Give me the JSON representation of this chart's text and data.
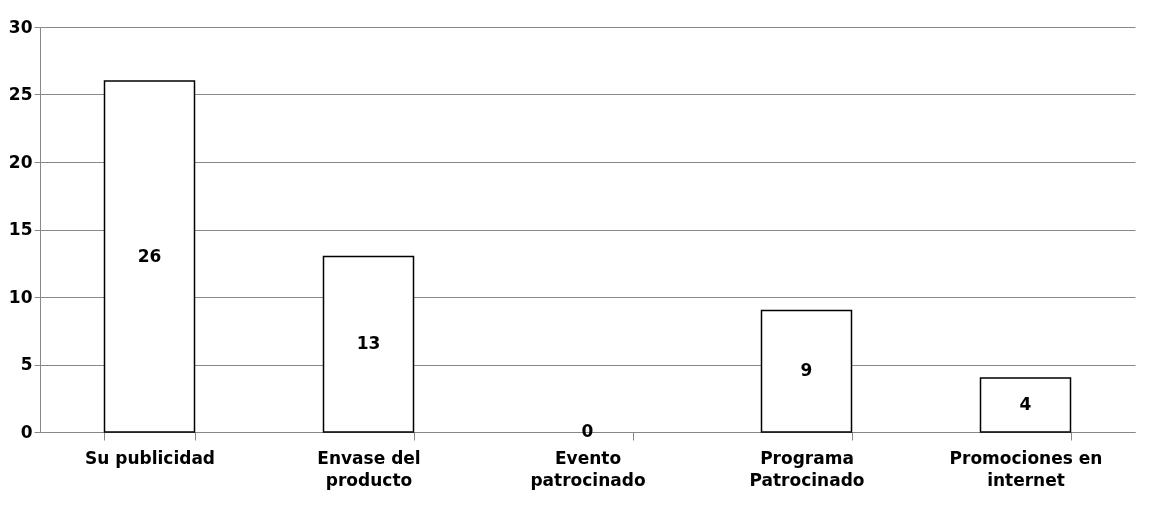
{
  "chart_data": {
    "type": "bar",
    "categories": [
      "Su publicidad",
      "Envase del producto",
      "Evento patrocinado",
      "Programa Patrocinado",
      "Promociones en internet"
    ],
    "values": [
      26,
      13,
      0,
      9,
      4
    ],
    "color": "#ffffff",
    "ylim": [
      0,
      30
    ],
    "yticks": [
      0,
      5,
      10,
      15,
      20,
      25,
      30
    ],
    "grid": "y",
    "data_labels": true
  }
}
